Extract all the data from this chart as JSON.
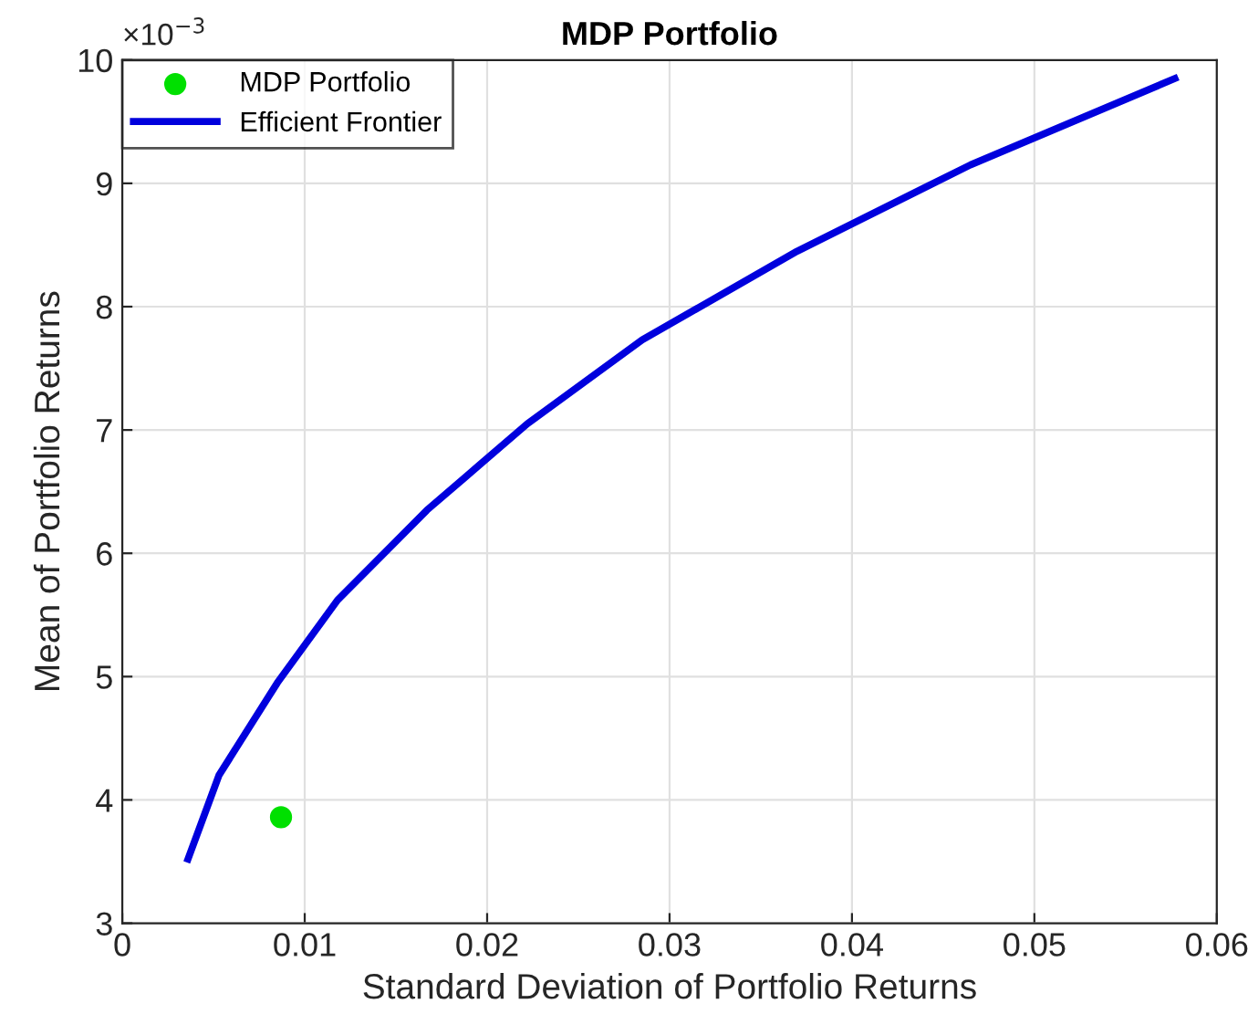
{
  "chart_data": {
    "type": "line",
    "title": "MDP Portfolio",
    "xlabel": "Standard Deviation of Portfolio Returns",
    "ylabel": "Mean of Portfolio Returns",
    "annotations": [
      "×10$^{−3}$"
    ],
    "series": [
      {
        "name": "MDP Portfolio",
        "type": "scatter",
        "color": "#00e000",
        "marker": "circle",
        "x": [
          0.0087
        ],
        "values": [
          3.86
        ]
      },
      {
        "name": "Efficient Frontier",
        "color": "#0000dd",
        "marker": "none",
        "x": [
          0.0036,
          0.0053,
          0.0085,
          0.0118,
          0.0167,
          0.0222,
          0.0285,
          0.037,
          0.0465,
          0.0577
        ],
        "values": [
          3.52,
          4.2,
          4.95,
          5.62,
          6.35,
          7.05,
          7.73,
          8.45,
          9.15,
          9.85
        ]
      }
    ],
    "xlim": [
      0,
      0.06
    ],
    "xticks": [
      0,
      0.01,
      0.02,
      0.03,
      0.04,
      0.05,
      0.06
    ],
    "ylim": [
      3,
      10
    ],
    "yticks": [
      3,
      4,
      5,
      6,
      7,
      8,
      9,
      10
    ],
    "grid": true,
    "legend": "top left"
  }
}
